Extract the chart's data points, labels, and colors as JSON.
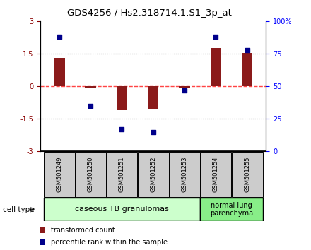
{
  "title": "GDS4256 / Hs2.318714.1.S1_3p_at",
  "samples": [
    "GSM501249",
    "GSM501250",
    "GSM501251",
    "GSM501252",
    "GSM501253",
    "GSM501254",
    "GSM501255"
  ],
  "bar_values": [
    1.3,
    -0.1,
    -1.1,
    -1.05,
    -0.05,
    1.75,
    1.55
  ],
  "scatter_values_pct": [
    88,
    35,
    17,
    15,
    47,
    88,
    78
  ],
  "ylim_left": [
    -3,
    3
  ],
  "ylim_right": [
    0,
    100
  ],
  "yticks_left": [
    -3,
    -1.5,
    0,
    1.5,
    3
  ],
  "yticks_right": [
    0,
    25,
    50,
    75,
    100
  ],
  "ytick_labels_right": [
    "0",
    "25",
    "50",
    "75",
    "100%"
  ],
  "bar_color": "#8B1A1A",
  "scatter_color": "#00008B",
  "zero_line_color": "#FF4444",
  "dotted_line_color": "#333333",
  "group1_label": "caseous TB granulomas",
  "group2_label": "normal lung\nparenchyma",
  "group1_color": "#ccffcc",
  "group2_color": "#88ee88",
  "sample_box_color": "#cccccc",
  "legend_bar_label": "transformed count",
  "legend_scatter_label": "percentile rank within the sample",
  "cell_type_label": "cell type"
}
